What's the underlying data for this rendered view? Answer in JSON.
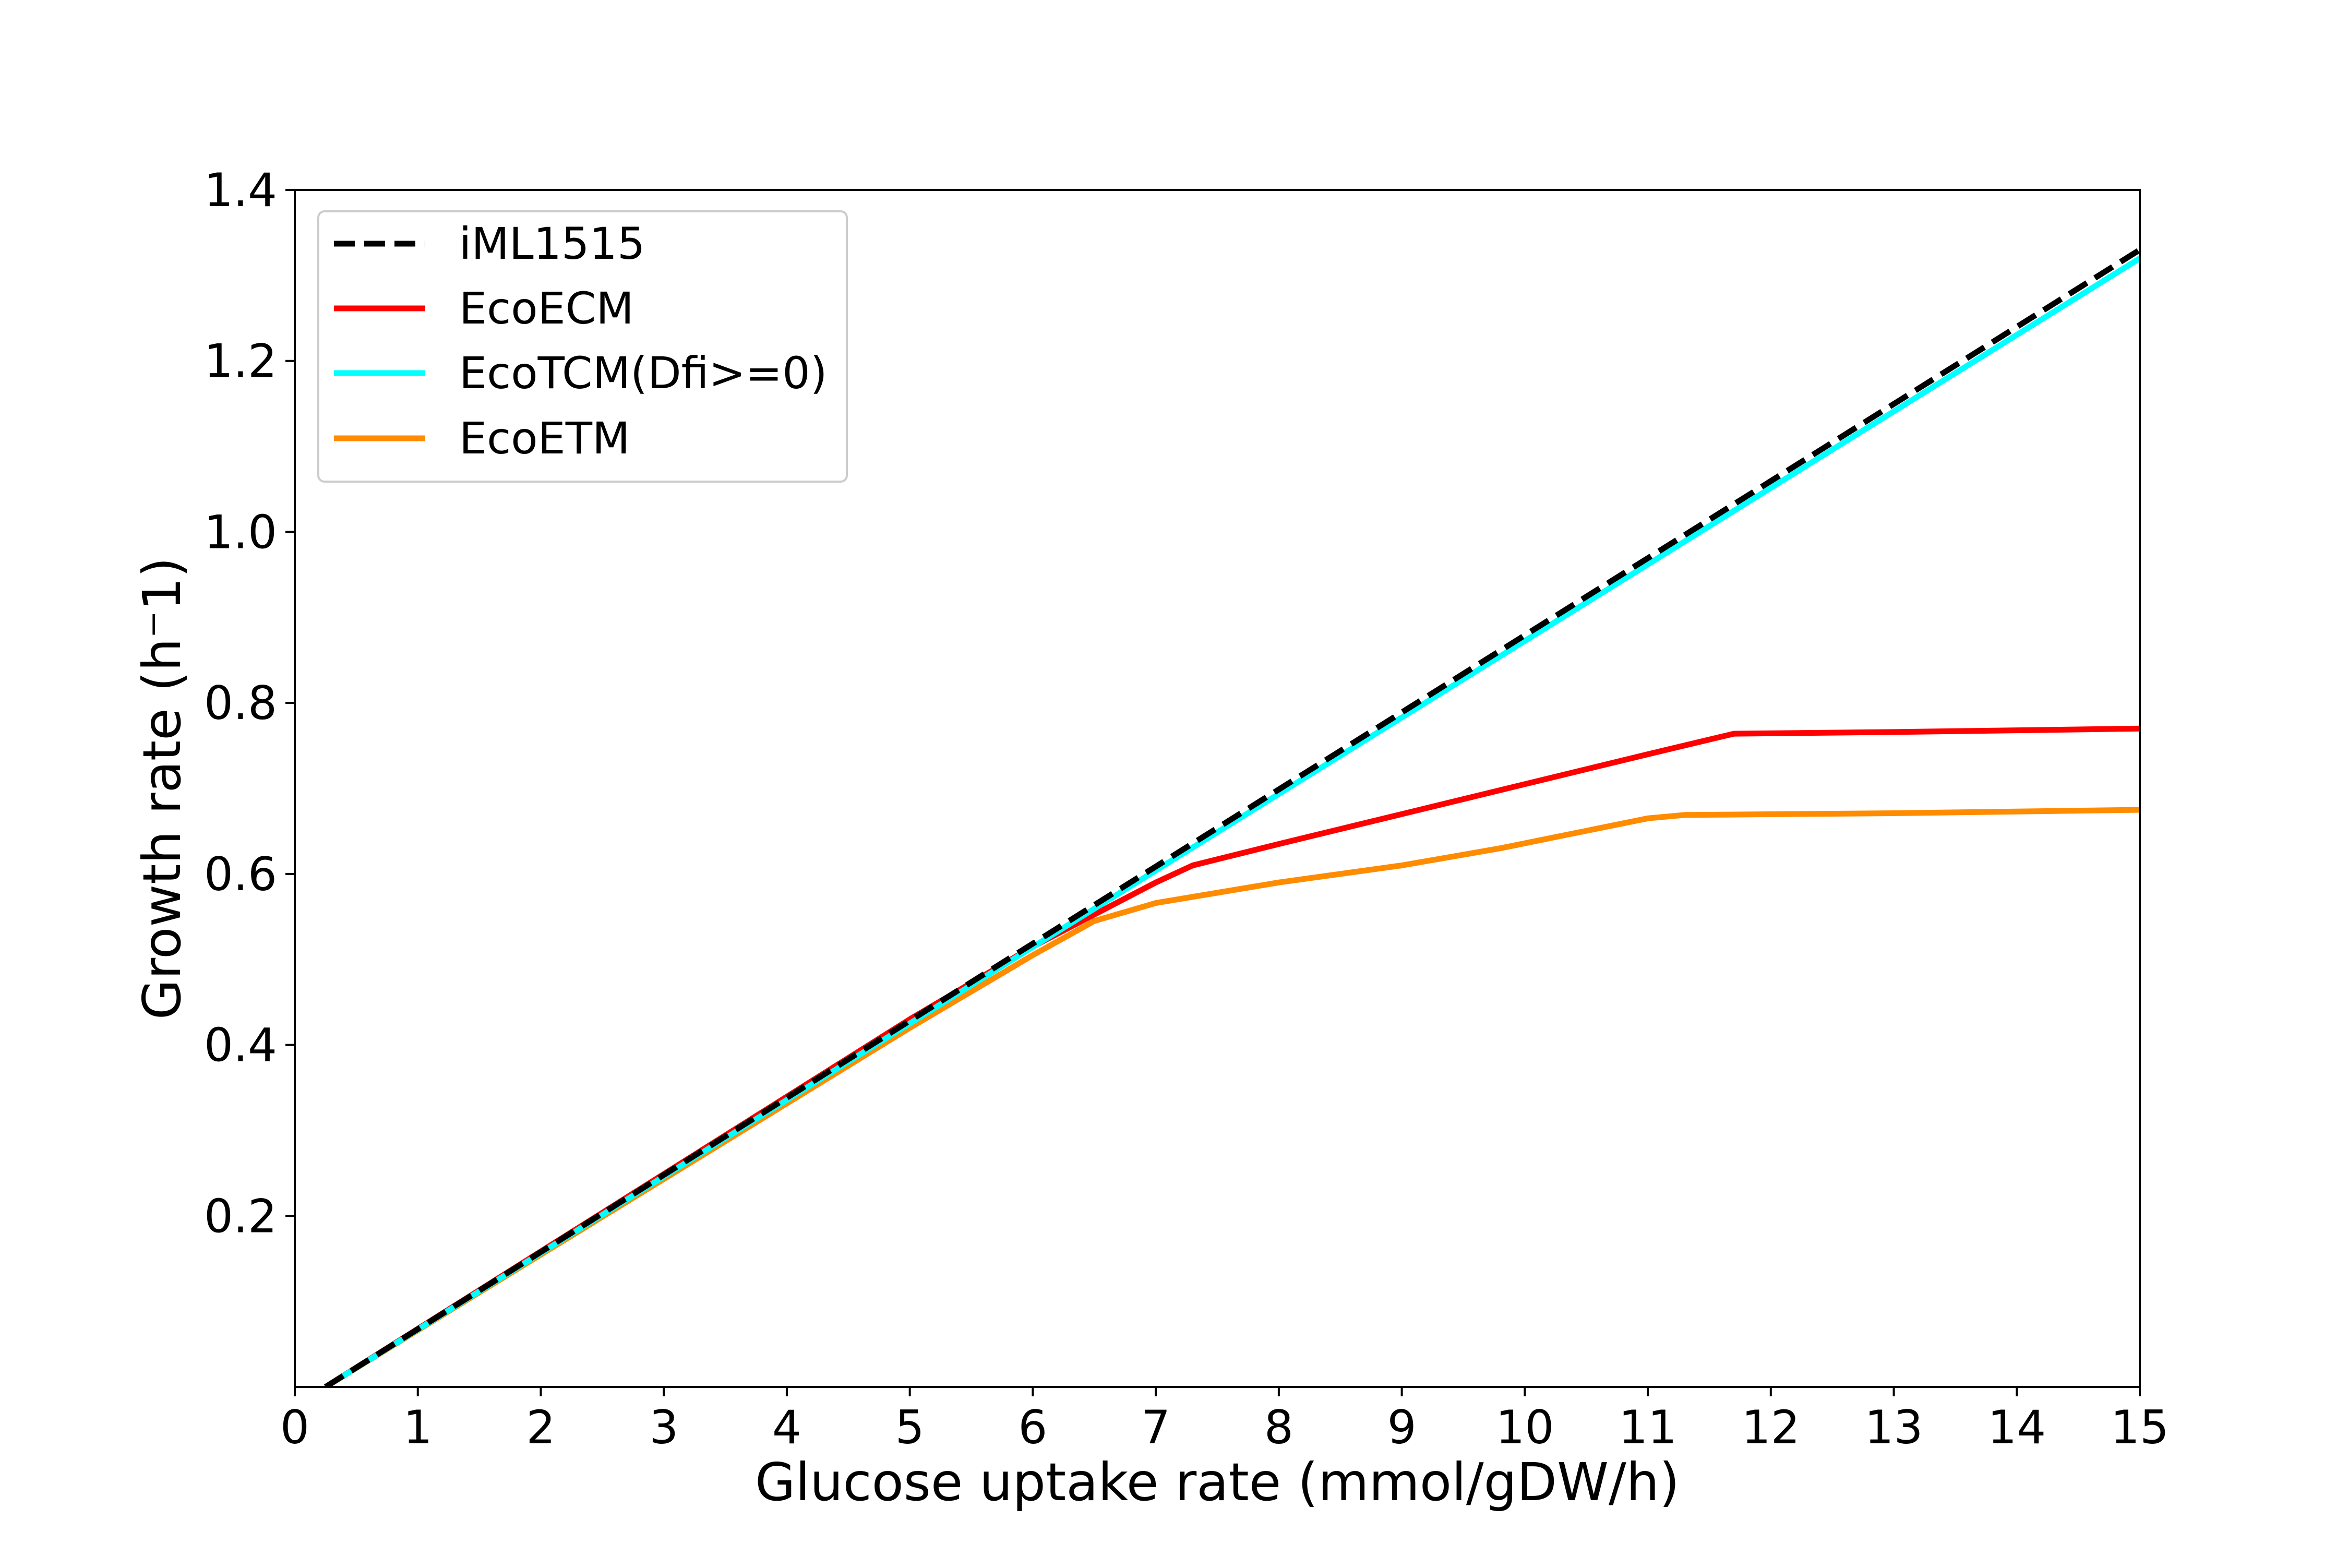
{
  "chart_data": {
    "type": "line",
    "title": "",
    "xlabel": "Glucose uptake rate (mmol/gDW/h)",
    "ylabel": "Growth rate (h⁻1)",
    "xlim": [
      0,
      15
    ],
    "ylim": [
      0,
      1.4
    ],
    "xticks": [
      0,
      1,
      2,
      3,
      4,
      5,
      6,
      7,
      8,
      9,
      10,
      11,
      12,
      13,
      14,
      15
    ],
    "yticks": [
      0.2,
      0.4,
      0.6,
      0.8,
      1.0,
      1.2,
      1.4
    ],
    "xtick_labels": [
      "0",
      "1",
      "2",
      "3",
      "4",
      "5",
      "6",
      "7",
      "8",
      "9",
      "10",
      "11",
      "12",
      "13",
      "14",
      "15"
    ],
    "ytick_labels": [
      "0.2",
      "0.4",
      "0.6",
      "0.8",
      "1.0",
      "1.2",
      "1.4"
    ],
    "grid": false,
    "legend_position": "top-left",
    "series": [
      {
        "name": "iML1515",
        "color": "#000000",
        "style": "dashed",
        "x": [
          0.25,
          15
        ],
        "y": [
          0.0,
          1.33
        ]
      },
      {
        "name": "EcoECM",
        "color": "#ff0000",
        "style": "solid",
        "x": [
          0.25,
          5,
          6,
          7,
          7.3,
          8,
          9,
          10,
          11,
          11.7,
          13,
          15
        ],
        "y": [
          0.0,
          0.43,
          0.515,
          0.59,
          0.61,
          0.635,
          0.67,
          0.705,
          0.74,
          0.764,
          0.766,
          0.77
        ]
      },
      {
        "name": "EcoTCM(Dfi>=0)",
        "color": "#00ffff",
        "style": "solid",
        "x": [
          0.25,
          15
        ],
        "y": [
          0.0,
          1.32
        ]
      },
      {
        "name": "EcoETM",
        "color": "#ff8c00",
        "style": "solid",
        "x": [
          0.25,
          5,
          6,
          6.5,
          7,
          8,
          9,
          9.8,
          11,
          11.3,
          13,
          15
        ],
        "y": [
          0.0,
          0.42,
          0.505,
          0.545,
          0.566,
          0.59,
          0.61,
          0.63,
          0.665,
          0.669,
          0.671,
          0.675
        ]
      }
    ]
  }
}
